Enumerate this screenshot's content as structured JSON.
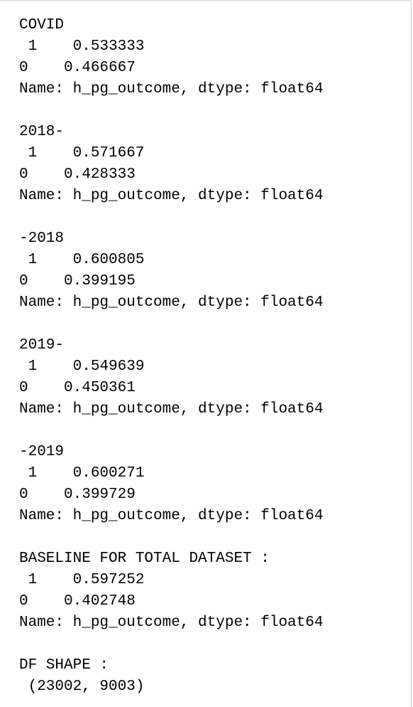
{
  "output": {
    "lines": [
      "COVID",
      " 1    0.533333",
      "0    0.466667",
      "Name: h_pg_outcome, dtype: float64",
      "",
      "2018-",
      " 1    0.571667",
      "0    0.428333",
      "Name: h_pg_outcome, dtype: float64",
      "",
      "-2018",
      " 1    0.600805",
      "0    0.399195",
      "Name: h_pg_outcome, dtype: float64",
      "",
      "2019-",
      " 1    0.549639",
      "0    0.450361",
      "Name: h_pg_outcome, dtype: float64",
      "",
      "-2019",
      " 1    0.600271",
      "0    0.399729",
      "Name: h_pg_outcome, dtype: float64",
      "",
      "BASELINE FOR TOTAL DATASET :",
      " 1    0.597252",
      "0    0.402748",
      "Name: h_pg_outcome, dtype: float64",
      "",
      "DF SHAPE :",
      " (23002, 9003)"
    ]
  }
}
